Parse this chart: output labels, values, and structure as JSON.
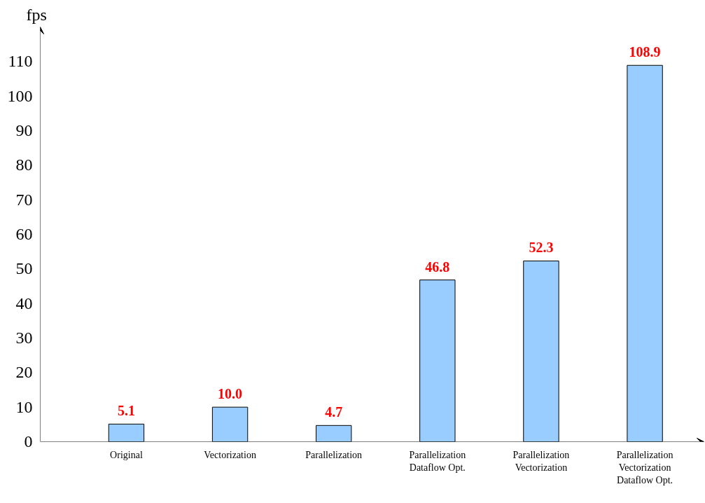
{
  "chart_data": {
    "type": "bar",
    "ylabel": "fps",
    "categories": [
      "Original",
      "Vectorization",
      "Parallelization",
      "Parallelization\nDataflow Opt.",
      "Parallelization\nVectorization",
      "Parallelization\nVectorization\nDataflow Opt."
    ],
    "values": [
      5.1,
      10.0,
      4.7,
      46.8,
      52.3,
      108.9
    ],
    "value_labels": [
      "5.1",
      "10.0",
      "4.7",
      "46.8",
      "52.3",
      "108.9"
    ],
    "color": "#99ccff",
    "ylim": [
      0,
      120
    ],
    "yticks": [
      0,
      10,
      20,
      30,
      40,
      50,
      60,
      70,
      80,
      90,
      100,
      110
    ],
    "grid": false
  }
}
